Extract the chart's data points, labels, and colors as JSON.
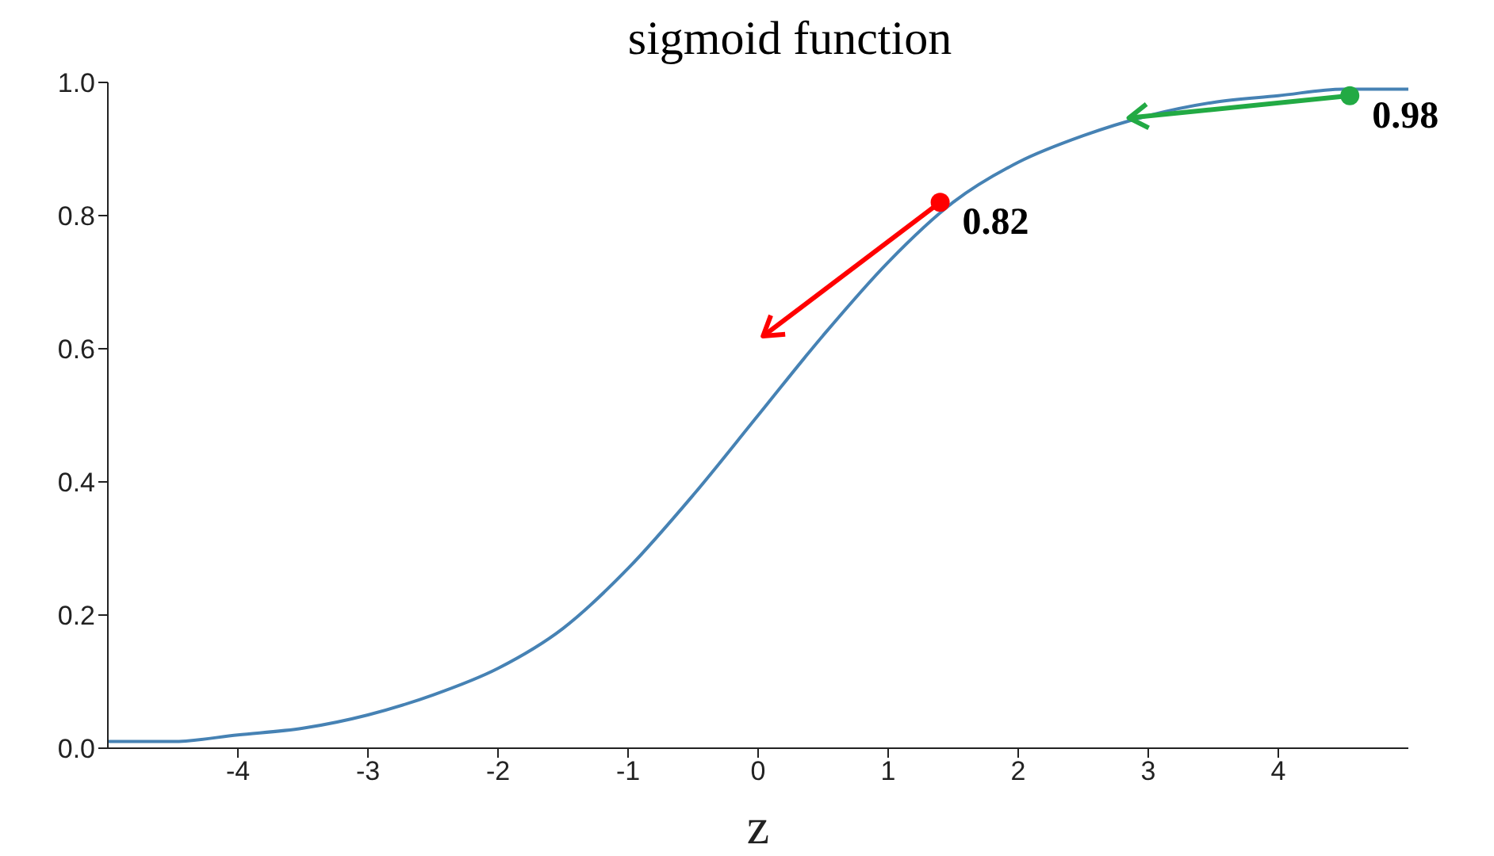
{
  "chart_data": {
    "type": "line",
    "title": "sigmoid function",
    "xlabel": "z",
    "xlim": [
      -5,
      5
    ],
    "xticks": [
      -4,
      -3,
      -2,
      -1,
      0,
      1,
      2,
      3,
      4
    ],
    "ylim": [
      0,
      1
    ],
    "yticks": [
      {
        "value": 0,
        "label": "0.0"
      },
      {
        "value": 0.2,
        "label": "0.2"
      },
      {
        "value": 0.4,
        "label": "0.4"
      },
      {
        "value": 0.6,
        "label": "0.6"
      },
      {
        "value": 0.8,
        "label": "0.8"
      },
      {
        "value": 1,
        "label": "1.0"
      }
    ],
    "grid": false,
    "legend": false,
    "series": [
      {
        "type": "line",
        "color": "#4682b4",
        "x": [
          -5,
          -4.5,
          -4,
          -3.5,
          -3,
          -2.5,
          -2,
          -1.5,
          -1,
          -0.5,
          0,
          0.5,
          1,
          1.5,
          2,
          2.5,
          3,
          3.5,
          4,
          4.5,
          5
        ],
        "values": [
          0.01,
          0.01,
          0.02,
          0.03,
          0.05,
          0.08,
          0.12,
          0.18,
          0.27,
          0.38,
          0.5,
          0.62,
          0.73,
          0.82,
          0.88,
          0.92,
          0.95,
          0.97,
          0.98,
          0.99,
          0.99
        ]
      },
      {
        "type": "scatter",
        "color": "#ff0000",
        "x": [
          1.4
        ],
        "values": [
          0.82
        ],
        "value_labels": [
          "0.82"
        ]
      },
      {
        "type": "scatter",
        "color": "#22aa44",
        "x": [
          4.55
        ],
        "values": [
          0.98
        ],
        "value_labels": [
          "0.98"
        ]
      }
    ]
  }
}
